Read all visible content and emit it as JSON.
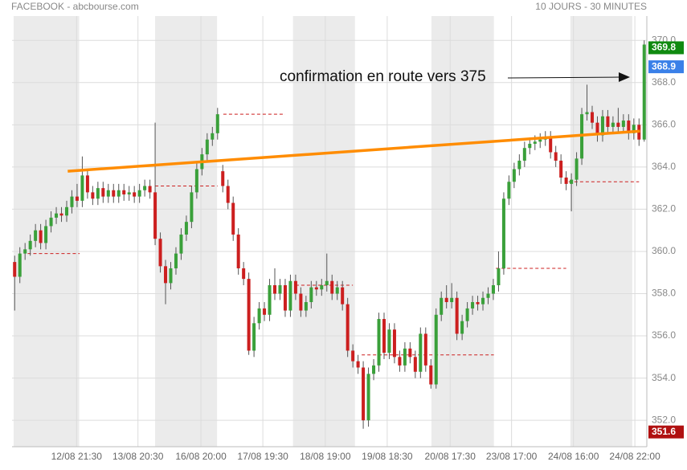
{
  "chart_data": {
    "type": "candlestick",
    "title": "FACEBOOK - abcbourse.com",
    "subtitle": "10 JOURS - 30 MINUTES",
    "annotation": "confirmation en route vers 375",
    "up_color": "#3aa03a",
    "down_color": "#cc1f1f",
    "open": [
      359.5,
      358.8,
      359.9,
      360.1,
      360.5,
      361.0,
      360.4,
      361.2,
      361.6,
      361.8,
      361.7,
      362.1,
      362.6,
      362.4,
      363.6,
      362.8,
      362.5,
      363.0,
      362.6,
      362.9,
      362.6,
      362.9,
      362.7,
      362.8,
      362.6,
      362.9,
      363.1,
      362.8,
      360.6,
      359.3,
      358.5,
      359.2,
      359.9,
      360.8,
      361.4,
      362.8,
      363.9,
      364.6,
      365.3,
      365.6,
      363.8,
      363.1,
      362.3,
      360.8,
      359.2,
      358.7,
      355.3,
      356.6,
      357.3,
      357.0,
      358.4,
      358.0,
      358.4,
      357.2,
      358.6,
      358.0,
      357.2,
      357.6,
      358.3,
      358.2,
      358.4,
      358.6,
      358.0,
      358.3,
      357.5,
      355.3,
      354.8,
      354.5,
      352.0,
      354.2,
      354.6,
      356.8,
      355.2,
      356.3,
      355.0,
      354.6,
      355.4,
      355.0,
      354.3,
      356.1,
      354.6,
      353.7,
      357.0,
      357.8,
      357.6,
      357.8,
      356.1,
      356.7,
      357.3,
      357.6,
      357.5,
      357.8,
      358.0,
      358.4,
      359.2,
      362.5,
      363.3,
      363.9,
      364.3,
      364.9,
      365.1,
      365.2,
      365.3,
      365.4,
      364.7,
      364.3,
      363.5,
      363.2,
      363.4,
      364.4,
      366.5,
      366.6,
      366.1,
      365.5,
      366.4,
      365.9,
      366.1,
      365.9,
      366.2,
      365.6,
      366.0,
      365.3
    ],
    "high": [
      359.8,
      360.2,
      360.4,
      360.8,
      361.3,
      361.3,
      361.5,
      361.9,
      362.1,
      362.1,
      362.4,
      362.9,
      363.2,
      364.5,
      363.9,
      363.1,
      363.3,
      363.3,
      363.2,
      363.2,
      363.2,
      363.2,
      363.1,
      363.1,
      363.2,
      363.4,
      363.4,
      366.1,
      360.9,
      359.6,
      359.5,
      360.2,
      361.1,
      361.7,
      363.1,
      364.2,
      364.9,
      365.6,
      365.9,
      366.8,
      364.1,
      363.4,
      362.6,
      361.1,
      359.5,
      359.0,
      356.9,
      357.6,
      357.6,
      358.7,
      359.2,
      358.7,
      358.7,
      358.9,
      358.9,
      358.3,
      357.9,
      358.6,
      358.6,
      358.7,
      359.9,
      358.9,
      358.6,
      358.6,
      357.8,
      355.6,
      355.1,
      354.8,
      354.5,
      354.9,
      357.1,
      357.1,
      356.6,
      356.6,
      355.3,
      355.7,
      355.7,
      355.3,
      356.4,
      356.4,
      354.9,
      357.3,
      358.1,
      358.4,
      358.5,
      358.1,
      357.0,
      357.6,
      357.9,
      357.9,
      358.1,
      358.3,
      358.7,
      360.0,
      362.8,
      363.6,
      364.2,
      364.6,
      365.2,
      365.4,
      365.5,
      365.6,
      365.7,
      365.7,
      365.0,
      364.6,
      363.8,
      363.7,
      364.7,
      366.8,
      367.9,
      366.9,
      366.4,
      366.7,
      366.7,
      366.4,
      366.8,
      366.5,
      366.5,
      366.3,
      366.3,
      370.0
    ],
    "low": [
      357.2,
      358.5,
      359.6,
      359.8,
      360.2,
      360.1,
      360.1,
      360.9,
      361.3,
      361.4,
      361.4,
      361.8,
      362.1,
      362.1,
      362.5,
      362.2,
      362.2,
      362.3,
      362.3,
      362.3,
      362.3,
      362.4,
      362.4,
      362.3,
      362.3,
      362.6,
      362.5,
      360.3,
      359.0,
      357.5,
      358.2,
      358.9,
      359.6,
      360.5,
      361.1,
      362.5,
      363.6,
      364.3,
      365.0,
      365.3,
      362.8,
      362.0,
      360.5,
      358.9,
      358.4,
      355.1,
      355.0,
      356.3,
      356.7,
      356.7,
      357.7,
      357.7,
      356.9,
      356.9,
      357.7,
      356.9,
      356.9,
      357.3,
      357.9,
      357.9,
      358.1,
      357.7,
      357.7,
      357.2,
      355.0,
      354.5,
      354.2,
      351.6,
      351.7,
      353.9,
      354.3,
      354.9,
      354.9,
      354.7,
      354.3,
      354.3,
      354.7,
      354.0,
      354.0,
      354.3,
      353.5,
      353.5,
      356.7,
      357.3,
      357.3,
      355.8,
      355.8,
      356.4,
      357.0,
      357.2,
      357.2,
      357.5,
      357.7,
      358.1,
      358.9,
      362.2,
      363.0,
      363.6,
      364.0,
      364.6,
      364.8,
      364.9,
      365.0,
      364.4,
      364.0,
      363.2,
      362.9,
      361.9,
      363.1,
      364.1,
      366.2,
      365.8,
      365.2,
      365.2,
      365.6,
      365.6,
      365.6,
      365.6,
      365.3,
      365.3,
      365.0,
      365.2
    ],
    "close": [
      358.8,
      359.9,
      360.1,
      360.5,
      361.0,
      360.4,
      361.2,
      361.6,
      361.8,
      361.7,
      362.1,
      362.6,
      362.4,
      363.6,
      362.8,
      362.5,
      363.0,
      362.6,
      362.9,
      362.6,
      362.9,
      362.7,
      362.8,
      362.6,
      362.9,
      363.1,
      362.8,
      360.6,
      359.3,
      358.5,
      359.2,
      359.9,
      360.8,
      361.4,
      362.8,
      363.9,
      364.6,
      365.3,
      365.6,
      366.5,
      363.1,
      362.3,
      360.8,
      359.2,
      358.7,
      355.3,
      356.6,
      357.3,
      357.0,
      358.4,
      358.0,
      358.4,
      357.2,
      358.6,
      358.0,
      357.2,
      357.6,
      358.3,
      358.2,
      358.4,
      358.6,
      358.0,
      358.3,
      357.5,
      355.3,
      354.8,
      354.5,
      352.0,
      354.2,
      354.6,
      356.8,
      355.2,
      356.3,
      355.0,
      354.6,
      355.4,
      355.0,
      354.3,
      356.1,
      354.6,
      353.7,
      357.0,
      357.8,
      357.6,
      357.8,
      356.1,
      356.7,
      357.3,
      357.6,
      357.5,
      357.8,
      358.0,
      358.4,
      359.2,
      362.5,
      363.3,
      363.9,
      364.3,
      364.9,
      365.1,
      365.2,
      365.3,
      365.4,
      364.7,
      364.3,
      363.5,
      363.2,
      363.4,
      364.4,
      366.5,
      366.6,
      366.1,
      365.5,
      366.4,
      365.9,
      366.1,
      365.9,
      366.2,
      365.6,
      366.0,
      365.3,
      369.8
    ],
    "ylim": [
      350.75,
      371.15
    ],
    "yticks": [
      {
        "value": 352,
        "label": "352.0"
      },
      {
        "value": 354,
        "label": "354.0"
      },
      {
        "value": 356,
        "label": "356.0"
      },
      {
        "value": 358,
        "label": "358.0"
      },
      {
        "value": 360,
        "label": "360.0"
      },
      {
        "value": 362,
        "label": "362.0"
      },
      {
        "value": 364,
        "label": "364.0"
      },
      {
        "value": 366,
        "label": "366.0"
      },
      {
        "value": 368,
        "label": "368.0"
      },
      {
        "value": 370,
        "label": "370.0"
      }
    ],
    "xlim": [
      -0.5,
      121.5
    ],
    "xticks": [
      {
        "value": 11.9,
        "label": "12/08 21:30"
      },
      {
        "value": 23.7,
        "label": "13/08 20:30"
      },
      {
        "value": 35.8,
        "label": "16/08 20:00"
      },
      {
        "value": 47.7,
        "label": "17/08 19:30"
      },
      {
        "value": 59.7,
        "label": "18/08 19:00"
      },
      {
        "value": 71.6,
        "label": "19/08 18:30"
      },
      {
        "value": 83.7,
        "label": "20/08 17:30"
      },
      {
        "value": 95.5,
        "label": "23/08 17:00"
      },
      {
        "value": 107.4,
        "label": "24/08 16:00"
      },
      {
        "value": 119.2,
        "label": "24/08 22:00"
      }
    ],
    "grid": true,
    "shaded_ranges": [
      [
        -0.2,
        12.4
      ],
      [
        27,
        38.9
      ],
      [
        53.5,
        65.4
      ],
      [
        80.1,
        92.1
      ],
      [
        106.8,
        118.7
      ]
    ],
    "reference_lines": {
      "color": "#cc1f1f",
      "values": [
        359.9,
        363.1,
        366.5,
        358.4,
        355.1,
        359.2,
        363.3
      ],
      "x_ranges": [
        [
          2.5,
          12.5
        ],
        [
          27,
          39
        ],
        [
          40.1,
          52
        ],
        [
          54,
          65
        ],
        [
          66.7,
          92.1
        ],
        [
          92.5,
          106
        ],
        [
          106.5,
          120
        ]
      ]
    },
    "trend_line": {
      "color": "#ff8c00",
      "x": [
        10.2,
        120.2
      ],
      "values": [
        363.8,
        365.7
      ]
    },
    "price_labels": {
      "values": [
        369.8,
        368.9,
        351.6
      ],
      "colors": [
        "#108a10",
        "#3a80e8",
        "#b01010"
      ]
    }
  }
}
